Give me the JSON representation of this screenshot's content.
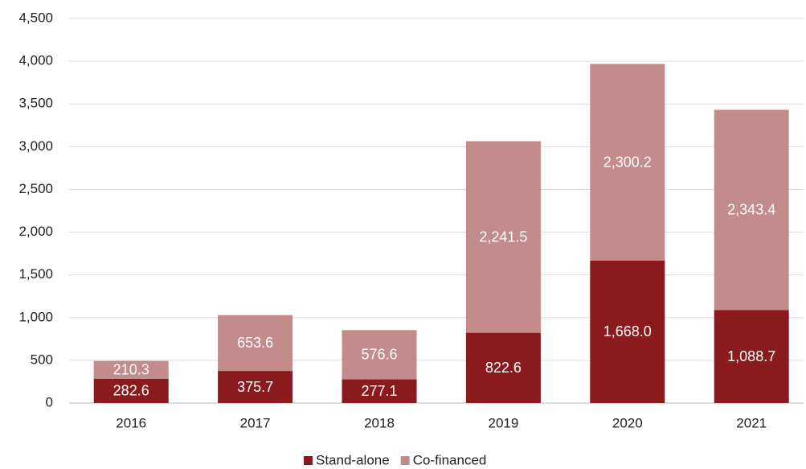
{
  "chart_data": {
    "type": "stacked_bar",
    "categories": [
      "2016",
      "2017",
      "2018",
      "2019",
      "2020",
      "2021"
    ],
    "series": [
      {
        "name": "Stand-alone",
        "color": "#8b1a1f",
        "values": [
          282.6,
          375.7,
          277.1,
          822.6,
          1668.0,
          1088.7
        ],
        "value_labels": [
          "282.6",
          "375.7",
          "277.1",
          "822.6",
          "1,668.0",
          "1,088.7"
        ]
      },
      {
        "name": "Co-financed",
        "color": "#c48b8b",
        "values": [
          210.3,
          653.6,
          576.6,
          2241.5,
          2300.2,
          2343.4
        ],
        "value_labels": [
          "210.3",
          "653.6",
          "576.6",
          "2,241.5",
          "2,300.2",
          "2,343.4"
        ]
      }
    ],
    "ylim": [
      0,
      4500
    ],
    "yticks": [
      0,
      500,
      {
        "value": 1000,
        "label": "1,000"
      },
      {
        "value": 1500,
        "label": "1,500"
      },
      {
        "value": 2000,
        "label": "2,000"
      },
      {
        "value": 2500,
        "label": "2,500"
      },
      {
        "value": 3000,
        "label": "3,000"
      },
      {
        "value": 3500,
        "label": "3,500"
      },
      {
        "value": 4000,
        "label": "4,000"
      },
      {
        "value": 4500,
        "label": "4,500"
      }
    ],
    "grid": true,
    "legend": "bottom"
  }
}
